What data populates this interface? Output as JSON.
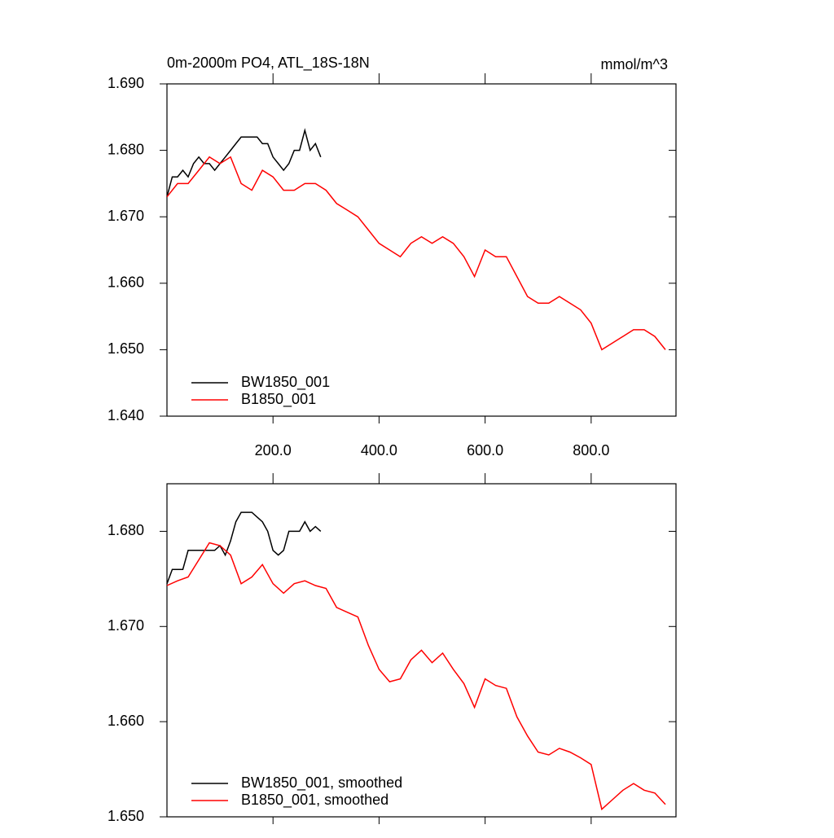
{
  "chart_data": [
    {
      "type": "line",
      "title": "0m-2000m PO4, ATL_18S-18N",
      "units": "mmol/m^3",
      "xlim": [
        0,
        960
      ],
      "ylim": [
        1.64,
        1.69
      ],
      "xticks": [
        {
          "value": 200,
          "label": "200.0"
        },
        {
          "value": 400,
          "label": "400.0"
        },
        {
          "value": 600,
          "label": "600.0"
        },
        {
          "value": 800,
          "label": "800.0"
        }
      ],
      "yticks": [
        {
          "value": 1.64,
          "label": "1.640"
        },
        {
          "value": 1.65,
          "label": "1.650"
        },
        {
          "value": 1.66,
          "label": "1.660"
        },
        {
          "value": 1.67,
          "label": "1.670"
        },
        {
          "value": 1.68,
          "label": "1.680"
        },
        {
          "value": 1.69,
          "label": "1.690"
        }
      ],
      "show_xtick_labels": true,
      "legend": "lower-left",
      "series": [
        {
          "name": "BW1850_001",
          "color": "#000000",
          "x": [
            0,
            10,
            20,
            30,
            40,
            50,
            60,
            70,
            80,
            90,
            100,
            110,
            120,
            130,
            140,
            150,
            160,
            170,
            180,
            190,
            200,
            210,
            220,
            230,
            240,
            250,
            260,
            270,
            280,
            290
          ],
          "values": [
            1.673,
            1.676,
            1.676,
            1.677,
            1.676,
            1.678,
            1.679,
            1.678,
            1.678,
            1.677,
            1.678,
            1.679,
            1.68,
            1.681,
            1.682,
            1.682,
            1.682,
            1.682,
            1.681,
            1.681,
            1.679,
            1.678,
            1.677,
            1.678,
            1.68,
            1.68,
            1.683,
            1.68,
            1.681,
            1.679
          ]
        },
        {
          "name": "B1850_001",
          "color": "#ff0000",
          "x": [
            0,
            20,
            40,
            60,
            80,
            100,
            120,
            140,
            160,
            180,
            200,
            220,
            240,
            260,
            280,
            300,
            320,
            340,
            360,
            380,
            400,
            420,
            440,
            460,
            480,
            500,
            520,
            540,
            560,
            580,
            600,
            620,
            640,
            660,
            680,
            700,
            720,
            740,
            760,
            780,
            800,
            820,
            840,
            860,
            880,
            900,
            920,
            940
          ],
          "values": [
            1.673,
            1.675,
            1.675,
            1.677,
            1.679,
            1.678,
            1.679,
            1.675,
            1.674,
            1.677,
            1.676,
            1.674,
            1.674,
            1.675,
            1.675,
            1.674,
            1.672,
            1.671,
            1.67,
            1.668,
            1.666,
            1.665,
            1.664,
            1.666,
            1.667,
            1.666,
            1.667,
            1.666,
            1.664,
            1.661,
            1.665,
            1.664,
            1.664,
            1.661,
            1.658,
            1.657,
            1.657,
            1.658,
            1.657,
            1.656,
            1.654,
            1.65,
            1.651,
            1.652,
            1.653,
            1.653,
            1.652,
            1.65
          ]
        }
      ]
    },
    {
      "type": "line",
      "xlim": [
        0,
        960
      ],
      "ylim": [
        1.65,
        1.685
      ],
      "xticks": [
        200,
        400,
        600,
        800
      ],
      "yticks": [
        {
          "value": 1.65,
          "label": "1.650"
        },
        {
          "value": 1.66,
          "label": "1.660"
        },
        {
          "value": 1.67,
          "label": "1.670"
        },
        {
          "value": 1.68,
          "label": "1.680"
        }
      ],
      "show_xtick_labels": false,
      "legend": "lower-left",
      "series": [
        {
          "name": "BW1850_001, smoothed",
          "color": "#000000",
          "x": [
            0,
            10,
            20,
            30,
            40,
            50,
            60,
            70,
            80,
            90,
            100,
            110,
            120,
            130,
            140,
            150,
            160,
            170,
            180,
            190,
            200,
            210,
            220,
            230,
            240,
            250,
            260,
            270,
            280,
            290
          ],
          "values": [
            1.6745,
            1.676,
            1.676,
            1.676,
            1.678,
            1.678,
            1.678,
            1.678,
            1.678,
            1.678,
            1.6785,
            1.6775,
            1.679,
            1.681,
            1.682,
            1.682,
            1.682,
            1.6815,
            1.681,
            1.68,
            1.678,
            1.6775,
            1.678,
            1.68,
            1.68,
            1.68,
            1.681,
            1.68,
            1.6805,
            1.68
          ]
        },
        {
          "name": "B1850_001, smoothed",
          "color": "#ff0000",
          "x": [
            0,
            20,
            40,
            60,
            80,
            100,
            120,
            140,
            160,
            180,
            200,
            220,
            240,
            260,
            280,
            300,
            320,
            340,
            360,
            380,
            400,
            420,
            440,
            460,
            480,
            500,
            520,
            540,
            560,
            580,
            600,
            620,
            640,
            660,
            680,
            700,
            720,
            740,
            760,
            780,
            800,
            820,
            840,
            860,
            880,
            900,
            920,
            940
          ],
          "values": [
            1.6743,
            1.6748,
            1.6752,
            1.677,
            1.6788,
            1.6785,
            1.6775,
            1.6745,
            1.6752,
            1.6765,
            1.6745,
            1.6735,
            1.6745,
            1.6748,
            1.6743,
            1.674,
            1.672,
            1.6715,
            1.671,
            1.668,
            1.6655,
            1.6642,
            1.6645,
            1.6665,
            1.6675,
            1.6662,
            1.6672,
            1.6655,
            1.664,
            1.6615,
            1.6645,
            1.6638,
            1.6635,
            1.6605,
            1.6585,
            1.6568,
            1.6565,
            1.6572,
            1.6568,
            1.6562,
            1.6555,
            1.6508,
            1.6518,
            1.6528,
            1.6535,
            1.6528,
            1.6525,
            1.6513
          ]
        }
      ]
    }
  ]
}
